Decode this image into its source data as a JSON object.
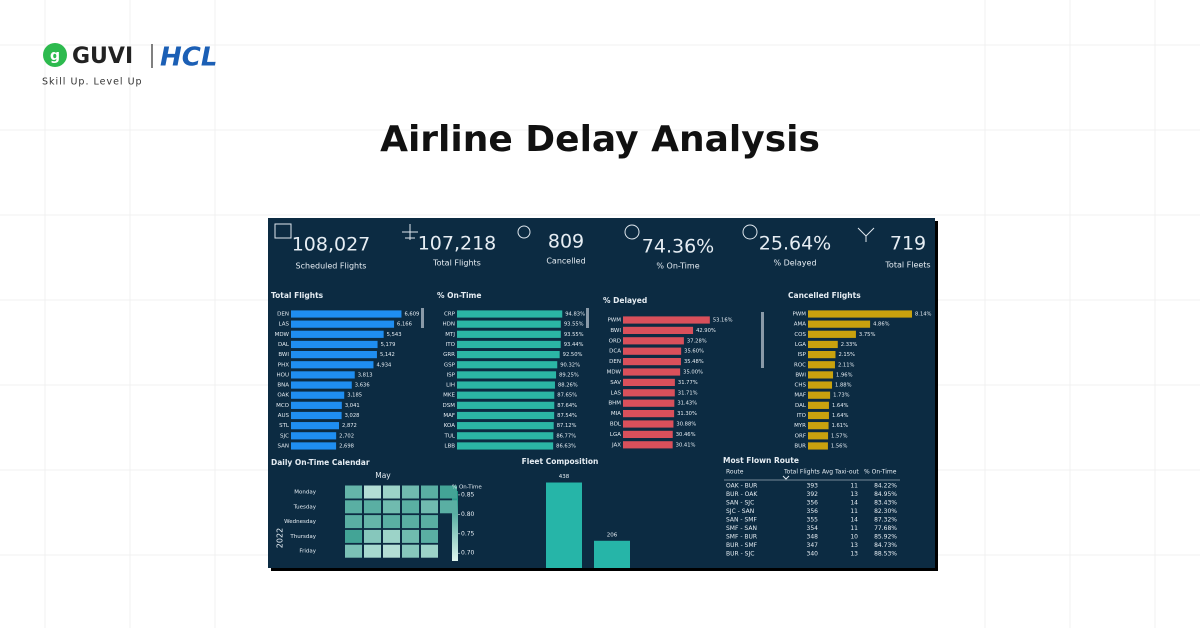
{
  "header": {
    "logo": "GUVI",
    "partner": "HCL",
    "tagline": "Skill Up. Level Up"
  },
  "title": "Airline Delay Analysis",
  "kpis": [
    {
      "value": "108,027",
      "label": "Scheduled Flights"
    },
    {
      "value": "107,218",
      "label": "Total Flights"
    },
    {
      "value": "809",
      "label": "Cancelled"
    },
    {
      "value": "74.36%",
      "label": "% On-Time"
    },
    {
      "value": "25.64%",
      "label": "% Delayed"
    },
    {
      "value": "719",
      "label": "Total Fleets"
    }
  ],
  "panels": [
    {
      "title": "Total Flights",
      "color": "#1f8ef1",
      "xlim": [
        0,
        7000
      ],
      "categories": [
        "DEN",
        "LAS",
        "MDW",
        "DAL",
        "BWI",
        "PHX",
        "HOU",
        "BNA",
        "OAK",
        "MCO",
        "AUS",
        "STL",
        "SJC",
        "SAN"
      ],
      "values": [
        6609,
        6166,
        5543,
        5179,
        5142,
        4934,
        3813,
        3636,
        3185,
        3041,
        3028,
        2872,
        2702,
        2698
      ],
      "value_labels": [
        "6,609",
        "6,166",
        "5,543",
        "5,179",
        "5,142",
        "4,934",
        "3,813",
        "3,636",
        "3,185",
        "3,041",
        "3,028",
        "2,872",
        "2,702",
        "2,698"
      ]
    },
    {
      "title": "% On-Time",
      "color": "#2bb5a5",
      "xlim": [
        0,
        100
      ],
      "categories": [
        "CRP",
        "HDN",
        "MTJ",
        "ITO",
        "GRR",
        "GSP",
        "ISP",
        "LIH",
        "MKE",
        "DSM",
        "MAF",
        "KOA",
        "TUL",
        "LBB"
      ],
      "values": [
        94.83,
        93.55,
        93.55,
        93.44,
        92.5,
        90.32,
        89.25,
        88.26,
        87.65,
        87.64,
        87.54,
        87.12,
        86.77,
        86.63
      ],
      "value_labels": [
        "94.83%",
        "93.55%",
        "93.55%",
        "93.44%",
        "92.50%",
        "90.32%",
        "89.25%",
        "88.26%",
        "87.65%",
        "87.64%",
        "87.54%",
        "87.12%",
        "86.77%",
        "86.63%"
      ]
    },
    {
      "title": "% Delayed",
      "color": "#d9505b",
      "xlim": [
        0,
        60
      ],
      "categories": [
        "PWM",
        "BWI",
        "ORD",
        "DCA",
        "DEN",
        "MDW",
        "SAV",
        "LAS",
        "BHM",
        "MIA",
        "BDL",
        "LGA",
        "JAX"
      ],
      "values": [
        53.16,
        42.9,
        37.28,
        35.6,
        35.48,
        35.0,
        31.77,
        31.71,
        31.43,
        31.3,
        30.88,
        30.46,
        30.41
      ],
      "value_labels": [
        "53.16%",
        "42.90%",
        "37.28%",
        "35.60%",
        "35.48%",
        "35.00%",
        "31.77%",
        "31.71%",
        "31.43%",
        "31.30%",
        "30.88%",
        "30.46%",
        "30.41%"
      ]
    },
    {
      "title": "Cancelled Flights",
      "color": "#c9a20e",
      "xlim": [
        0,
        9
      ],
      "categories": [
        "PWM",
        "AMA",
        "COS",
        "LGA",
        "ISP",
        "ROC",
        "BWI",
        "CHS",
        "MAF",
        "DAL",
        "ITO",
        "MYR",
        "ORF",
        "BUR"
      ],
      "values": [
        8.14,
        4.86,
        3.75,
        2.33,
        2.15,
        2.11,
        1.96,
        1.88,
        1.73,
        1.64,
        1.64,
        1.61,
        1.57,
        1.56
      ],
      "value_labels": [
        "8.14%",
        "4.86%",
        "3.75%",
        "2.33%",
        "2.15%",
        "2.11%",
        "1.96%",
        "1.88%",
        "1.73%",
        "1.64%",
        "1.64%",
        "1.61%",
        "1.57%",
        "1.56%"
      ]
    }
  ],
  "calendar": {
    "title": "Daily On-Time Calendar",
    "month": "May",
    "year": "2022",
    "rows": [
      "Monday",
      "Tuesday",
      "Wednesday",
      "Thursday",
      "Friday"
    ],
    "values": [
      [
        0.79,
        0.72,
        0.74,
        0.78,
        0.8,
        0.82
      ],
      [
        0.8,
        0.8,
        0.78,
        0.8,
        0.78,
        0.8
      ],
      [
        0.8,
        0.79,
        0.8,
        0.8,
        0.8,
        null
      ],
      [
        0.82,
        0.76,
        0.74,
        0.78,
        0.8,
        null
      ],
      [
        0.77,
        0.73,
        0.72,
        0.76,
        0.74,
        null
      ]
    ],
    "legend_title": "% On-Time",
    "clim": [
      0.68,
      0.86
    ],
    "ticks": [
      0.85,
      {
        "value": 0.8,
        "label": "0.80"
      },
      0.75,
      {
        "value": 0.7,
        "label": "0.70"
      }
    ],
    "colors": [
      "#dff6ee",
      "#178c7d"
    ]
  },
  "fleet": {
    "title": "Fleet Composition",
    "values": [
      438,
      206
    ],
    "color": "#26b5a8",
    "ylim": [
      0,
      450
    ]
  },
  "table": {
    "title": "Most Flown Route",
    "columns": [
      "Route",
      "Total Flights",
      "Avg Taxi-out",
      "% On-Time"
    ],
    "rows": [
      [
        "OAK - BUR",
        "393",
        "11",
        "84.22%"
      ],
      [
        "BUR - OAK",
        "392",
        "13",
        "84.95%"
      ],
      [
        "SAN - SJC",
        "356",
        "14",
        "83.43%"
      ],
      [
        "SJC - SAN",
        "356",
        "11",
        "82.30%"
      ],
      [
        "SAN - SMF",
        "355",
        "14",
        "87.32%"
      ],
      [
        "SMF - SAN",
        "354",
        "11",
        "77.68%"
      ],
      [
        "SMF - BUR",
        "348",
        "10",
        "85.92%"
      ],
      [
        "BUR - SMF",
        "347",
        "13",
        "84.73%"
      ],
      [
        "BUR - SJC",
        "340",
        "13",
        "88.53%"
      ]
    ]
  }
}
